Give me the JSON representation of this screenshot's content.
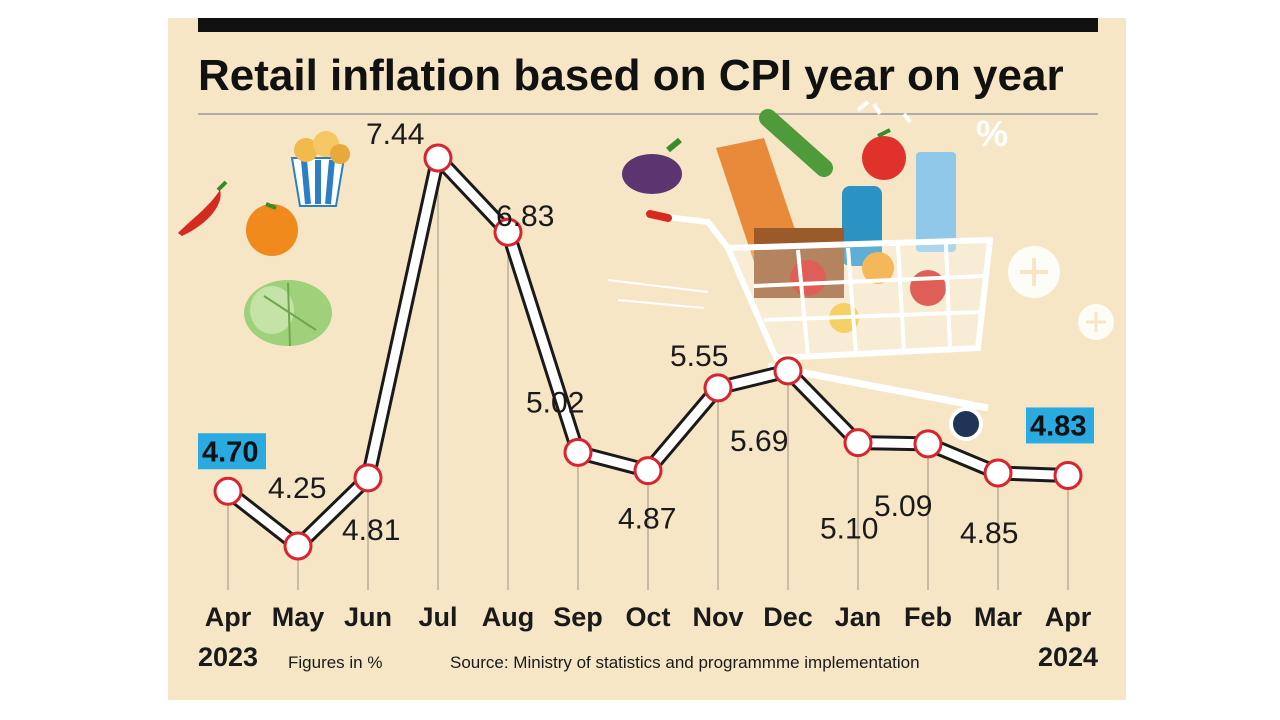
{
  "chart_data": {
    "type": "line",
    "title": "Retail inflation based on CPI year on year",
    "categories": [
      "Apr",
      "May",
      "Jun",
      "Jul",
      "Aug",
      "Sep",
      "Oct",
      "Nov",
      "Dec",
      "Jan",
      "Feb",
      "Mar",
      "Apr"
    ],
    "year_labels": [
      {
        "index": 0,
        "label": "2023"
      },
      {
        "index": 12,
        "label": "2024"
      }
    ],
    "series": [
      {
        "values": [
          4.7,
          4.25,
          4.81,
          7.44,
          6.83,
          5.02,
          4.87,
          5.55,
          5.69,
          5.1,
          5.09,
          4.85,
          4.83
        ]
      }
    ],
    "value_labels": [
      "4.70",
      "4.25",
      "4.81",
      "7.44",
      "6.83",
      "5.02",
      "4.87",
      "5.55",
      "5.69",
      "5.10",
      "5.09",
      "4.85",
      "4.83"
    ],
    "highlighted_points": [
      0,
      12
    ],
    "units_note": "Figures in %",
    "source": "Source: Ministry of statistics and programmme implementation",
    "ylim": [
      4.0,
      7.8
    ],
    "grid": false,
    "colors": {
      "background": "#f6e6c6",
      "line_outline": "#1a1a1a",
      "line_fill": "#ffffff",
      "marker_stroke": "#d9232d",
      "highlight_box": "#29abe2",
      "top_bar": "#111111"
    }
  },
  "decor": {
    "icons": [
      "chilli-icon",
      "orange-icon",
      "cabbage-icon",
      "popcorn-icon",
      "eggplant-icon",
      "cucumber-icon",
      "tomato-icon",
      "shopping-cart-icon",
      "percent-icon",
      "plus-icon"
    ]
  }
}
